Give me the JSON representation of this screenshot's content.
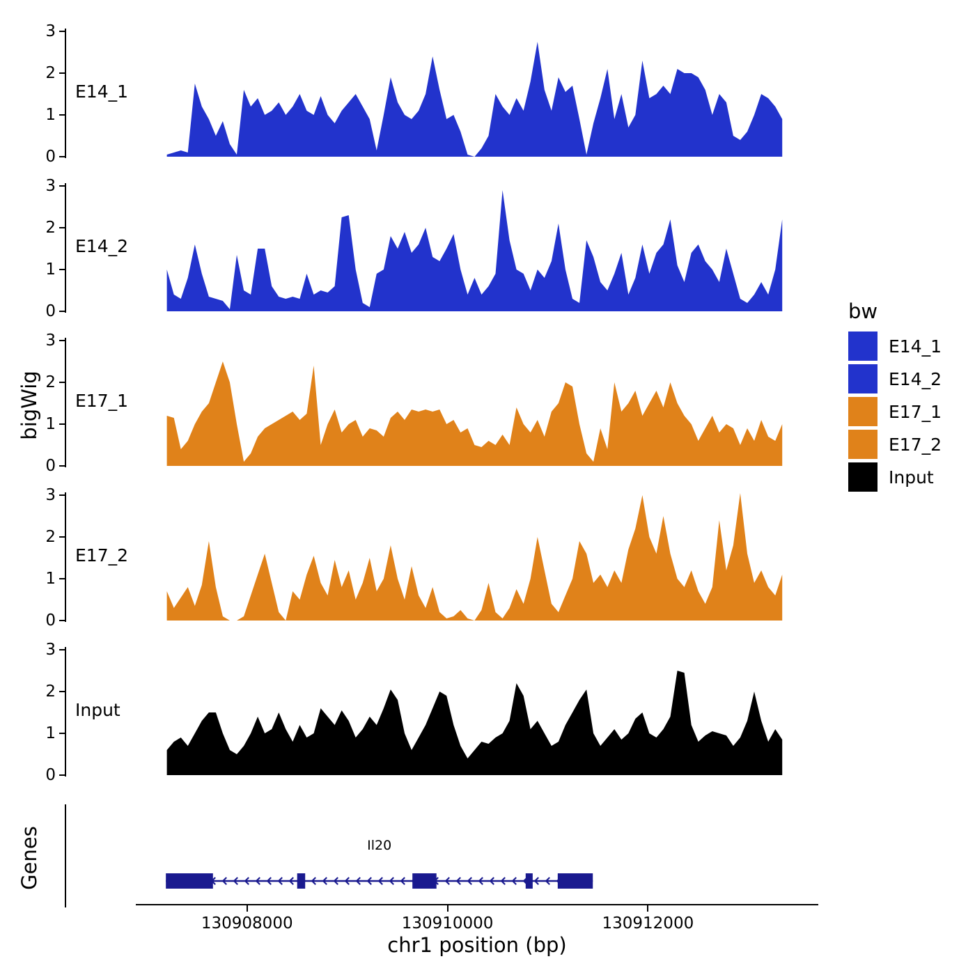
{
  "chart_data": {
    "type": "area",
    "title": "",
    "ylabel": "bigWig",
    "xlabel": "chr1 position (bp)",
    "ylim": [
      0,
      3.17
    ],
    "y_ticks": [
      0,
      1,
      2,
      3
    ],
    "grid": "off",
    "legend_position": "right",
    "x_ticks_bp": [
      130908000,
      130910000,
      130912000
    ],
    "x_axis_domain_bp": [
      130906890,
      130913700
    ],
    "x_signal_domain_bp": [
      130907200,
      130913340
    ],
    "tracks": [
      {
        "name": "E14_1",
        "color": "#2233cc",
        "values": [
          0.05,
          0.1,
          0.15,
          0.1,
          1.75,
          1.2,
          0.9,
          0.5,
          0.85,
          0.3,
          0.05,
          1.6,
          1.2,
          1.4,
          1.0,
          1.1,
          1.3,
          1.0,
          1.2,
          1.5,
          1.1,
          1.0,
          1.45,
          1.0,
          0.8,
          1.1,
          1.3,
          1.5,
          1.2,
          0.9,
          0.15,
          1.0,
          1.9,
          1.3,
          1.0,
          0.9,
          1.1,
          1.5,
          2.4,
          1.6,
          0.9,
          1.0,
          0.6,
          0.05,
          0,
          0.2,
          0.5,
          1.5,
          1.2,
          1.0,
          1.4,
          1.1,
          1.8,
          2.75,
          1.6,
          1.1,
          1.9,
          1.55,
          1.7,
          0.9,
          0.05,
          0.8,
          1.4,
          2.1,
          0.9,
          1.5,
          0.7,
          1.0,
          2.3,
          1.4,
          1.5,
          1.7,
          1.5,
          2.1,
          2.0,
          2.0,
          1.9,
          1.6,
          1.0,
          1.5,
          1.3,
          0.5,
          0.4,
          0.6,
          1.0,
          1.5,
          1.4,
          1.2,
          0.9
        ]
      },
      {
        "name": "E14_2",
        "color": "#2233cc",
        "values": [
          1.0,
          0.4,
          0.3,
          0.8,
          1.6,
          0.9,
          0.35,
          0.3,
          0.25,
          0.05,
          1.35,
          0.5,
          0.4,
          1.5,
          1.5,
          0.6,
          0.35,
          0.3,
          0.35,
          0.3,
          0.9,
          0.4,
          0.5,
          0.45,
          0.6,
          2.25,
          2.3,
          1.0,
          0.2,
          0.1,
          0.9,
          1.0,
          1.8,
          1.5,
          1.9,
          1.4,
          1.6,
          2.0,
          1.3,
          1.2,
          1.5,
          1.85,
          1.0,
          0.4,
          0.8,
          0.4,
          0.6,
          0.9,
          2.9,
          1.7,
          1.0,
          0.9,
          0.5,
          1.0,
          0.8,
          1.2,
          2.1,
          1.0,
          0.3,
          0.2,
          1.7,
          1.3,
          0.7,
          0.5,
          0.9,
          1.4,
          0.4,
          0.8,
          1.6,
          0.9,
          1.4,
          1.6,
          2.2,
          1.1,
          0.7,
          1.4,
          1.6,
          1.2,
          1.0,
          0.7,
          1.5,
          0.9,
          0.3,
          0.2,
          0.4,
          0.7,
          0.4,
          1.0,
          2.2
        ]
      },
      {
        "name": "E17_1",
        "color": "#e0821a",
        "values": [
          1.2,
          1.15,
          0.4,
          0.6,
          1.0,
          1.3,
          1.5,
          2.0,
          2.5,
          2.0,
          1.0,
          0.1,
          0.3,
          0.7,
          0.9,
          1.0,
          1.1,
          1.2,
          1.3,
          1.1,
          1.25,
          2.4,
          0.5,
          1.0,
          1.35,
          0.8,
          1.0,
          1.1,
          0.7,
          0.9,
          0.85,
          0.7,
          1.15,
          1.3,
          1.1,
          1.35,
          1.3,
          1.35,
          1.3,
          1.35,
          1.0,
          1.1,
          0.8,
          0.9,
          0.5,
          0.45,
          0.6,
          0.5,
          0.75,
          0.5,
          1.4,
          1.0,
          0.8,
          1.1,
          0.7,
          1.3,
          1.5,
          2.0,
          1.9,
          1.0,
          0.3,
          0.1,
          0.9,
          0.4,
          2.0,
          1.3,
          1.5,
          1.8,
          1.2,
          1.5,
          1.8,
          1.4,
          2.0,
          1.5,
          1.2,
          1.0,
          0.6,
          0.9,
          1.2,
          0.8,
          1.0,
          0.9,
          0.5,
          0.9,
          0.6,
          1.1,
          0.7,
          0.6,
          1.0
        ]
      },
      {
        "name": "E17_2",
        "color": "#e0821a",
        "values": [
          0.7,
          0.3,
          0.55,
          0.8,
          0.35,
          0.85,
          1.9,
          0.8,
          0.1,
          0,
          0,
          0.1,
          0.6,
          1.1,
          1.6,
          0.9,
          0.2,
          0,
          0.7,
          0.5,
          1.1,
          1.55,
          0.9,
          0.6,
          1.45,
          0.8,
          1.2,
          0.5,
          0.9,
          1.5,
          0.7,
          1.0,
          1.8,
          1.0,
          0.5,
          1.3,
          0.6,
          0.3,
          0.8,
          0.2,
          0.05,
          0.1,
          0.25,
          0.05,
          0,
          0.25,
          0.9,
          0.2,
          0.05,
          0.3,
          0.75,
          0.4,
          1.0,
          2.0,
          1.2,
          0.4,
          0.2,
          0.6,
          1.0,
          1.9,
          1.6,
          0.9,
          1.1,
          0.8,
          1.2,
          0.9,
          1.7,
          2.2,
          3.0,
          2.0,
          1.6,
          2.5,
          1.6,
          1.0,
          0.8,
          1.2,
          0.7,
          0.4,
          0.8,
          2.4,
          1.2,
          1.8,
          3.05,
          1.6,
          0.9,
          1.2,
          0.8,
          0.6,
          1.1
        ]
      },
      {
        "name": "Input",
        "color": "#000000",
        "values": [
          0.6,
          0.8,
          0.9,
          0.7,
          1.0,
          1.3,
          1.5,
          1.5,
          1.0,
          0.6,
          0.5,
          0.7,
          1.0,
          1.4,
          1.0,
          1.1,
          1.5,
          1.1,
          0.8,
          1.2,
          0.9,
          1.0,
          1.6,
          1.4,
          1.2,
          1.55,
          1.3,
          0.9,
          1.1,
          1.4,
          1.2,
          1.6,
          2.05,
          1.8,
          1.0,
          0.6,
          0.9,
          1.2,
          1.6,
          2.0,
          1.9,
          1.2,
          0.7,
          0.4,
          0.6,
          0.8,
          0.75,
          0.9,
          1.0,
          1.3,
          2.2,
          1.9,
          1.1,
          1.3,
          1.0,
          0.7,
          0.8,
          1.2,
          1.5,
          1.8,
          2.05,
          1.0,
          0.7,
          0.9,
          1.1,
          0.85,
          1.0,
          1.35,
          1.5,
          1.0,
          0.9,
          1.1,
          1.4,
          2.5,
          2.45,
          1.2,
          0.8,
          0.95,
          1.05,
          1.0,
          0.95,
          0.7,
          0.9,
          1.3,
          2.0,
          1.3,
          0.8,
          1.1,
          0.85
        ]
      }
    ],
    "genes_panel": {
      "ylabel": "Genes",
      "gene": {
        "name": "Il20",
        "strand": "-",
        "color": "#1a1a8f",
        "start_bp": 130907190,
        "end_bp": 130911450,
        "exons": [
          [
            130907190,
            130907660
          ],
          [
            130908500,
            130908580
          ],
          [
            130909650,
            130909890
          ],
          [
            130910780,
            130910850
          ],
          [
            130911100,
            130911450
          ]
        ]
      }
    },
    "legend": {
      "title": "bw",
      "items": [
        {
          "label": "E14_1",
          "color": "#2233cc"
        },
        {
          "label": "E14_2",
          "color": "#2233cc"
        },
        {
          "label": "E17_1",
          "color": "#e0821a"
        },
        {
          "label": "E17_2",
          "color": "#e0821a"
        },
        {
          "label": "Input",
          "color": "#000000"
        }
      ]
    }
  }
}
